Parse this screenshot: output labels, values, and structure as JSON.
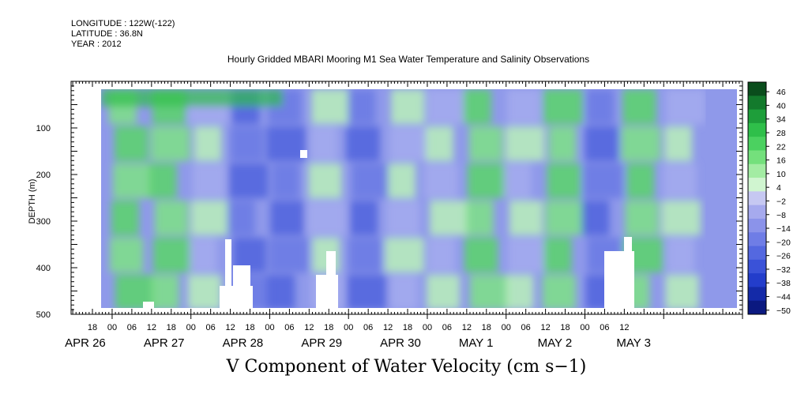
{
  "header": {
    "longitude": "LONGITUDE : 122W(-122)",
    "latitude": "LATITUDE : 36.8N",
    "year": "YEAR : 2012",
    "title": "Hourly Gridded MBARI Mooring M1 Sea Water Temperature and Salinity Observations"
  },
  "chart_data": {
    "type": "heatmap",
    "title": "Hourly Gridded MBARI Mooring M1 Sea Water Temperature and Salinity Observations",
    "xlabel": "V Component of Water Velocity (cm s−1)",
    "ylabel": "DEPTH (m)",
    "ylim": [
      500,
      0
    ],
    "y_ticks": [
      100,
      200,
      300,
      400,
      500
    ],
    "y_tick_labels": [
      "100",
      "200",
      "300",
      "400",
      "500"
    ],
    "x_hour_labels": [
      "18",
      "00",
      "06",
      "12",
      "18",
      "00",
      "06",
      "12",
      "18",
      "00",
      "06",
      "12",
      "18",
      "00",
      "06",
      "12",
      "18",
      "00",
      "06",
      "12",
      "18",
      "00",
      "06",
      "12",
      "18",
      "00",
      "06",
      "12"
    ],
    "x_day_labels": [
      "APR 26",
      "APR 27",
      "APR 28",
      "APR 29",
      "APR 30",
      "MAY  1",
      "MAY  2",
      "MAY  3"
    ],
    "colorbar": {
      "labels": [
        "46",
        "40",
        "34",
        "28",
        "22",
        "16",
        "10",
        "4",
        "−2",
        "−8",
        "−14",
        "−20",
        "−26",
        "−32",
        "−38",
        "−44",
        "−50"
      ],
      "min": -50,
      "max": 50
    },
    "column_states": [
      {
        "hour": 6,
        "state": "green"
      },
      {
        "hour": 18,
        "state": "green"
      },
      {
        "hour": 30,
        "state": "mixed"
      },
      {
        "hour": 42,
        "state": "blue"
      },
      {
        "hour": 54,
        "state": "blue"
      },
      {
        "hour": 66,
        "state": "mixed"
      },
      {
        "hour": 78,
        "state": "blue"
      },
      {
        "hour": 90,
        "state": "mixed"
      },
      {
        "hour": 102,
        "state": "mixed"
      },
      {
        "hour": 114,
        "state": "green"
      },
      {
        "hour": 126,
        "state": "mixed"
      },
      {
        "hour": 138,
        "state": "green"
      },
      {
        "hour": 150,
        "state": "blue"
      },
      {
        "hour": 162,
        "state": "green"
      },
      {
        "hour": 174,
        "state": "mixed"
      }
    ]
  }
}
